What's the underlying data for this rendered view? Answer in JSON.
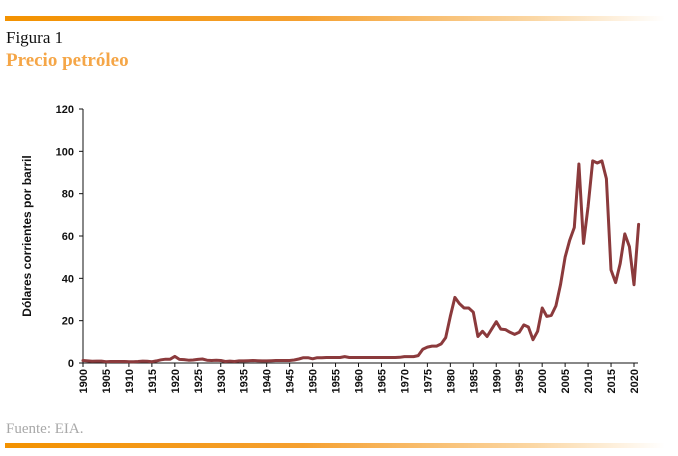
{
  "figure_label": "Figura 1",
  "figure_title": "Precio petróleo",
  "source": "Fuente: EIA.",
  "colors": {
    "line": "#8b3a3c",
    "accent": "#f39200",
    "title": "#f5a647"
  },
  "chart_data": {
    "type": "line",
    "title": "Precio petróleo",
    "xlabel": "",
    "ylabel": "Dólares corrientes por barril",
    "xlim": [
      1900,
      2021
    ],
    "ylim": [
      0,
      120
    ],
    "yticks": [
      0,
      20,
      40,
      60,
      80,
      100,
      120
    ],
    "xticks": [
      1900,
      1905,
      1910,
      1915,
      1920,
      1925,
      1930,
      1935,
      1940,
      1945,
      1950,
      1955,
      1960,
      1965,
      1970,
      1975,
      1980,
      1985,
      1990,
      1995,
      2000,
      2005,
      2010,
      2015,
      2020
    ],
    "grid": false,
    "series": [
      {
        "name": "Precio petróleo",
        "x": [
          1900,
          1901,
          1902,
          1903,
          1904,
          1905,
          1906,
          1907,
          1908,
          1909,
          1910,
          1911,
          1912,
          1913,
          1914,
          1915,
          1916,
          1917,
          1918,
          1919,
          1920,
          1921,
          1922,
          1923,
          1924,
          1925,
          1926,
          1927,
          1928,
          1929,
          1930,
          1931,
          1932,
          1933,
          1934,
          1935,
          1936,
          1937,
          1938,
          1939,
          1940,
          1941,
          1942,
          1943,
          1944,
          1945,
          1946,
          1947,
          1948,
          1949,
          1950,
          1951,
          1952,
          1953,
          1954,
          1955,
          1956,
          1957,
          1958,
          1959,
          1960,
          1961,
          1962,
          1963,
          1964,
          1965,
          1966,
          1967,
          1968,
          1969,
          1970,
          1971,
          1972,
          1973,
          1974,
          1975,
          1976,
          1977,
          1978,
          1979,
          1980,
          1981,
          1982,
          1983,
          1984,
          1985,
          1986,
          1987,
          1988,
          1989,
          1990,
          1991,
          1992,
          1993,
          1994,
          1995,
          1996,
          1997,
          1998,
          1999,
          2000,
          2001,
          2002,
          2003,
          2004,
          2005,
          2006,
          2007,
          2008,
          2009,
          2010,
          2011,
          2012,
          2013,
          2014,
          2015,
          2016,
          2017,
          2018,
          2019,
          2020,
          2021
        ],
        "values": [
          1.2,
          1.0,
          0.8,
          0.9,
          0.9,
          0.6,
          0.7,
          0.7,
          0.7,
          0.7,
          0.6,
          0.6,
          0.7,
          0.9,
          0.8,
          0.6,
          1.0,
          1.5,
          1.8,
          1.8,
          3.1,
          1.7,
          1.6,
          1.3,
          1.4,
          1.7,
          1.9,
          1.3,
          1.2,
          1.3,
          1.2,
          0.7,
          0.9,
          0.7,
          1.0,
          1.0,
          1.1,
          1.2,
          1.1,
          1.0,
          1.0,
          1.1,
          1.2,
          1.2,
          1.2,
          1.2,
          1.4,
          1.9,
          2.5,
          2.5,
          2.0,
          2.5,
          2.5,
          2.6,
          2.6,
          2.6,
          2.6,
          3.0,
          2.6,
          2.6,
          2.6,
          2.6,
          2.6,
          2.6,
          2.6,
          2.6,
          2.6,
          2.6,
          2.6,
          2.7,
          3.0,
          3.0,
          3.0,
          3.5,
          6.5,
          7.5,
          8.0,
          8.0,
          9.0,
          12.0,
          22.0,
          31.0,
          28.0,
          26.0,
          26.0,
          24.0,
          12.5,
          15.0,
          12.5,
          16.0,
          19.5,
          16.0,
          15.8,
          14.5,
          13.5,
          14.5,
          18.0,
          17.0,
          11.0,
          15.0,
          26.0,
          22.0,
          22.5,
          27.0,
          37.0,
          50.0,
          58.0,
          64.0,
          94.0,
          56.5,
          74.0,
          95.5,
          94.5,
          95.5,
          87.0,
          44.0,
          38.0,
          47.0,
          61.0,
          55.0,
          37.0,
          65.5
        ]
      }
    ]
  }
}
